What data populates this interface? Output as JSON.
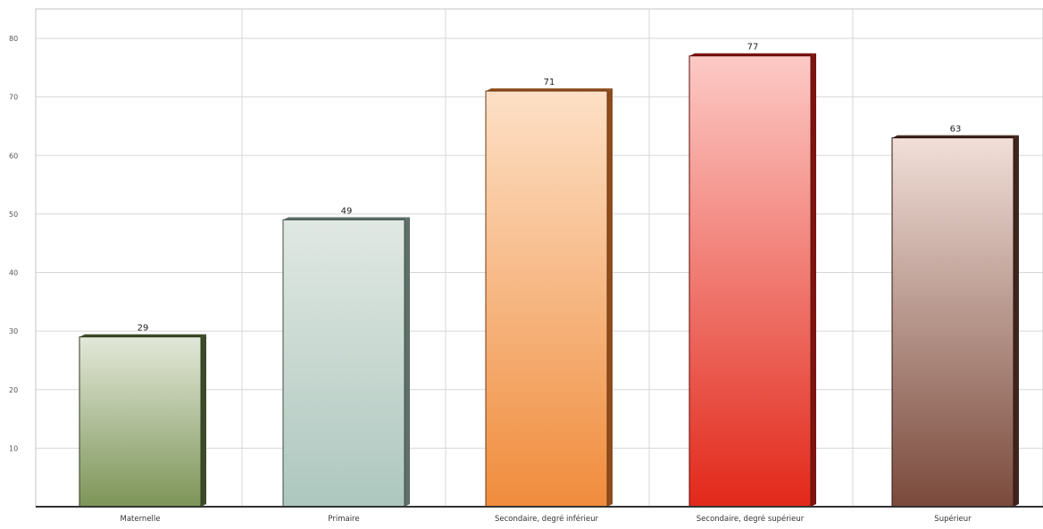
{
  "chart_data": {
    "type": "bar",
    "title": "",
    "xlabel": "",
    "ylabel": "",
    "categories": [
      "Maternelle",
      "Primaire",
      "Secondaire, degré inférieur",
      "Secondaire, degré supérieur",
      "Supérieur"
    ],
    "values": [
      29,
      49,
      71,
      77,
      63
    ],
    "ylim": [
      0,
      80
    ],
    "y_ticks": [
      "10",
      "20",
      "30",
      "40",
      "50",
      "60",
      "70",
      "80"
    ],
    "grid": true,
    "legend": "none",
    "bar_colors": [
      {
        "top": "#e3e8d9",
        "bottom": "#7d9558",
        "side": "#3c4a29",
        "edge": "#2f3a20"
      },
      {
        "top": "#e1e8e3",
        "bottom": "#adc7be",
        "side": "#5d7069",
        "edge": "#3f4d48"
      },
      {
        "top": "#fde0c6",
        "bottom": "#f08c3c",
        "side": "#8d4c1c",
        "edge": "#6e3a12"
      },
      {
        "top": "#fdcac6",
        "bottom": "#e2281a",
        "side": "#7d1410",
        "edge": "#5e0e0a"
      },
      {
        "top": "#f1dfd8",
        "bottom": "#7a4a3c",
        "side": "#3f241c",
        "edge": "#2e1812"
      }
    ]
  }
}
